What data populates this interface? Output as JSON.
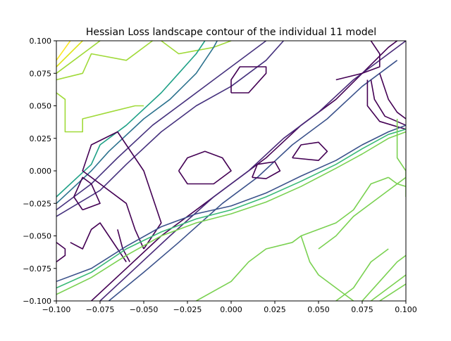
{
  "chart_data": {
    "type": "contour",
    "title": "Hessian Loss landscape contour of the individual 11 model",
    "xlabel": "",
    "ylabel": "",
    "xlim": [
      -0.1,
      0.1
    ],
    "ylim": [
      -0.1,
      0.1
    ],
    "grid": false,
    "legend": "none",
    "colormap": "viridis",
    "xticks": [
      -0.1,
      -0.075,
      -0.05,
      -0.025,
      0.0,
      0.025,
      0.05,
      0.075,
      0.1
    ],
    "yticks": [
      -0.1,
      -0.075,
      -0.05,
      -0.025,
      0.0,
      0.025,
      0.05,
      0.075,
      0.1
    ],
    "xtick_labels": [
      "−0.100",
      "−0.075",
      "−0.050",
      "−0.025",
      "0.000",
      "0.025",
      "0.050",
      "0.075",
      "0.100"
    ],
    "ytick_labels": [
      "−0.100",
      "−0.075",
      "−0.050",
      "−0.025",
      "0.000",
      "0.025",
      "0.050",
      "0.075",
      "0.100"
    ],
    "contour_lines": [
      {
        "color": "#fde725",
        "points": [
          [
            -0.1,
            0.085
          ],
          [
            -0.092,
            0.1
          ]
        ]
      },
      {
        "color": "#dde318",
        "points": [
          [
            -0.1,
            0.08
          ],
          [
            -0.085,
            0.1
          ]
        ]
      },
      {
        "color": "#a0da39",
        "points": [
          [
            -0.1,
            0.075
          ],
          [
            -0.08,
            0.095
          ],
          [
            -0.075,
            0.1
          ]
        ]
      },
      {
        "color": "#a0da39",
        "points": [
          [
            -0.1,
            0.07
          ],
          [
            -0.085,
            0.075
          ],
          [
            -0.08,
            0.09
          ],
          [
            -0.06,
            0.085
          ],
          [
            -0.045,
            0.1
          ]
        ]
      },
      {
        "color": "#a0da39",
        "points": [
          [
            -0.04,
            0.1
          ],
          [
            -0.03,
            0.09
          ],
          [
            -0.01,
            0.095
          ],
          [
            0.0,
            0.1
          ]
        ]
      },
      {
        "color": "#a0da39",
        "points": [
          [
            -0.1,
            0.06
          ],
          [
            -0.095,
            0.055
          ],
          [
            -0.095,
            0.03
          ],
          [
            -0.085,
            0.03
          ],
          [
            -0.085,
            0.04
          ],
          [
            -0.07,
            0.045
          ],
          [
            -0.055,
            0.05
          ],
          [
            -0.05,
            0.05
          ]
        ]
      },
      {
        "color": "#1fa187",
        "points": [
          [
            -0.1,
            -0.02
          ],
          [
            -0.08,
            0.005
          ],
          [
            -0.075,
            0.02
          ],
          [
            -0.06,
            0.035
          ],
          [
            -0.04,
            0.06
          ],
          [
            -0.03,
            0.075
          ],
          [
            -0.02,
            0.09
          ],
          [
            -0.015,
            0.1
          ]
        ]
      },
      {
        "color": "#2c728e",
        "points": [
          [
            -0.1,
            -0.025
          ],
          [
            -0.08,
            0.0
          ],
          [
            -0.07,
            0.015
          ],
          [
            -0.05,
            0.04
          ],
          [
            -0.035,
            0.055
          ],
          [
            -0.02,
            0.075
          ],
          [
            -0.01,
            0.095
          ],
          [
            -0.008,
            0.1
          ]
        ]
      },
      {
        "color": "#46327e",
        "points": [
          [
            -0.1,
            -0.03
          ],
          [
            -0.08,
            -0.01
          ],
          [
            -0.065,
            0.01
          ],
          [
            -0.045,
            0.035
          ],
          [
            -0.025,
            0.055
          ],
          [
            -0.01,
            0.07
          ],
          [
            0.01,
            0.09
          ],
          [
            0.02,
            0.1
          ]
        ]
      },
      {
        "color": "#46327e",
        "points": [
          [
            -0.1,
            -0.035
          ],
          [
            -0.075,
            -0.015
          ],
          [
            -0.06,
            0.005
          ],
          [
            -0.04,
            0.03
          ],
          [
            -0.02,
            0.05
          ],
          [
            0.0,
            0.065
          ],
          [
            0.02,
            0.085
          ],
          [
            0.03,
            0.1
          ]
        ]
      },
      {
        "color": "#440154",
        "points": [
          [
            -0.08,
            -0.1
          ],
          [
            -0.06,
            -0.075
          ],
          [
            -0.04,
            -0.05
          ],
          [
            -0.015,
            -0.025
          ],
          [
            0.0,
            -0.01
          ],
          [
            0.02,
            0.01
          ],
          [
            0.04,
            0.035
          ],
          [
            0.06,
            0.055
          ],
          [
            0.075,
            0.075
          ],
          [
            0.09,
            0.095
          ],
          [
            0.095,
            0.1
          ]
        ]
      },
      {
        "color": "#482878",
        "points": [
          [
            -0.075,
            -0.1
          ],
          [
            -0.055,
            -0.075
          ],
          [
            -0.035,
            -0.05
          ],
          [
            -0.01,
            -0.02
          ],
          [
            0.01,
            0.0
          ],
          [
            0.03,
            0.025
          ],
          [
            0.05,
            0.045
          ],
          [
            0.07,
            0.07
          ],
          [
            0.09,
            0.09
          ],
          [
            0.1,
            0.1
          ]
        ]
      },
      {
        "color": "#3b528b",
        "points": [
          [
            -0.07,
            -0.1
          ],
          [
            -0.05,
            -0.078
          ],
          [
            -0.03,
            -0.055
          ],
          [
            -0.005,
            -0.025
          ],
          [
            0.015,
            -0.005
          ],
          [
            0.035,
            0.02
          ],
          [
            0.055,
            0.04
          ],
          [
            0.075,
            0.065
          ],
          [
            0.095,
            0.085
          ]
        ]
      },
      {
        "color": "#440154",
        "points": [
          [
            -0.05,
            -0.06
          ],
          [
            -0.055,
            -0.045
          ],
          [
            -0.06,
            -0.025
          ],
          [
            -0.075,
            -0.01
          ],
          [
            -0.085,
            0.0
          ],
          [
            -0.08,
            0.02
          ],
          [
            -0.065,
            0.03
          ],
          [
            -0.06,
            0.02
          ],
          [
            -0.055,
            0.01
          ],
          [
            -0.05,
            0.0
          ],
          [
            -0.045,
            -0.02
          ],
          [
            -0.04,
            -0.04
          ],
          [
            -0.05,
            -0.06
          ]
        ]
      },
      {
        "color": "#440154",
        "points": [
          [
            -0.085,
            -0.03
          ],
          [
            -0.09,
            -0.02
          ],
          [
            -0.085,
            -0.005
          ],
          [
            -0.08,
            -0.01
          ],
          [
            -0.075,
            -0.025
          ],
          [
            -0.085,
            -0.03
          ]
        ]
      },
      {
        "color": "#440154",
        "points": [
          [
            0.035,
            0.01
          ],
          [
            0.04,
            0.02
          ],
          [
            0.05,
            0.022
          ],
          [
            0.055,
            0.015
          ],
          [
            0.05,
            0.008
          ],
          [
            0.035,
            0.01
          ]
        ]
      },
      {
        "color": "#440154",
        "points": [
          [
            0.012,
            -0.005
          ],
          [
            0.015,
            0.005
          ],
          [
            0.025,
            0.007
          ],
          [
            0.028,
            0.0
          ],
          [
            0.02,
            -0.006
          ],
          [
            0.012,
            -0.005
          ]
        ]
      },
      {
        "color": "#440154",
        "points": [
          [
            -0.03,
            0.0
          ],
          [
            -0.025,
            0.01
          ],
          [
            -0.015,
            0.015
          ],
          [
            -0.005,
            0.01
          ],
          [
            0.0,
            0.0
          ],
          [
            -0.01,
            -0.01
          ],
          [
            -0.025,
            -0.01
          ],
          [
            -0.03,
            0.0
          ]
        ]
      },
      {
        "color": "#440154",
        "points": [
          [
            0.0,
            0.06
          ],
          [
            0.01,
            0.06
          ],
          [
            0.02,
            0.075
          ],
          [
            0.02,
            0.08
          ],
          [
            0.005,
            0.08
          ],
          [
            0.0,
            0.07
          ],
          [
            0.0,
            0.06
          ]
        ]
      },
      {
        "color": "#440154",
        "points": [
          [
            0.06,
            0.07
          ],
          [
            0.075,
            0.075
          ],
          [
            0.085,
            0.08
          ],
          [
            0.085,
            0.09
          ],
          [
            0.08,
            0.1
          ]
        ]
      },
      {
        "color": "#440154",
        "points": [
          [
            0.085,
            0.075
          ],
          [
            0.09,
            0.055
          ],
          [
            0.095,
            0.045
          ],
          [
            0.1,
            0.04
          ]
        ]
      },
      {
        "color": "#440154",
        "points": [
          [
            0.08,
            0.07
          ],
          [
            0.082,
            0.055
          ],
          [
            0.088,
            0.042
          ],
          [
            0.1,
            0.035
          ]
        ]
      },
      {
        "color": "#440154",
        "points": [
          [
            0.078,
            0.07
          ],
          [
            0.078,
            0.05
          ],
          [
            0.085,
            0.038
          ],
          [
            0.1,
            0.032
          ]
        ]
      },
      {
        "color": "#440154",
        "points": [
          [
            -0.092,
            -0.055
          ],
          [
            -0.085,
            -0.06
          ],
          [
            -0.08,
            -0.045
          ],
          [
            -0.075,
            -0.04
          ],
          [
            -0.07,
            -0.05
          ],
          [
            -0.065,
            -0.06
          ],
          [
            -0.06,
            -0.07
          ]
        ]
      },
      {
        "color": "#440154",
        "points": [
          [
            -0.065,
            -0.045
          ],
          [
            -0.062,
            -0.06
          ],
          [
            -0.058,
            -0.07
          ]
        ]
      },
      {
        "color": "#440154",
        "points": [
          [
            -0.1,
            -0.055
          ],
          [
            -0.095,
            -0.06
          ],
          [
            -0.095,
            -0.065
          ],
          [
            -0.1,
            -0.07
          ]
        ]
      },
      {
        "color": "#3aba76",
        "points": [
          [
            -0.1,
            -0.09
          ],
          [
            -0.08,
            -0.078
          ],
          [
            -0.06,
            -0.06
          ],
          [
            -0.04,
            -0.047
          ],
          [
            -0.02,
            -0.037
          ],
          [
            0.0,
            -0.03
          ],
          [
            0.02,
            -0.02
          ],
          [
            0.04,
            -0.008
          ],
          [
            0.06,
            0.005
          ],
          [
            0.075,
            0.017
          ],
          [
            0.09,
            0.028
          ],
          [
            0.1,
            0.032
          ]
        ]
      },
      {
        "color": "#3b528b",
        "points": [
          [
            -0.1,
            -0.085
          ],
          [
            -0.08,
            -0.075
          ],
          [
            -0.06,
            -0.058
          ],
          [
            -0.04,
            -0.043
          ],
          [
            -0.02,
            -0.033
          ],
          [
            0.0,
            -0.027
          ],
          [
            0.02,
            -0.017
          ],
          [
            0.04,
            -0.004
          ],
          [
            0.06,
            0.008
          ],
          [
            0.075,
            0.02
          ],
          [
            0.09,
            0.03
          ],
          [
            0.1,
            0.035
          ]
        ]
      },
      {
        "color": "#7ad151",
        "points": [
          [
            -0.1,
            -0.095
          ],
          [
            -0.08,
            -0.082
          ],
          [
            -0.06,
            -0.065
          ],
          [
            -0.04,
            -0.05
          ],
          [
            -0.02,
            -0.04
          ],
          [
            0.0,
            -0.033
          ],
          [
            0.02,
            -0.024
          ],
          [
            0.04,
            -0.012
          ],
          [
            0.06,
            0.002
          ],
          [
            0.075,
            0.013
          ],
          [
            0.09,
            0.025
          ],
          [
            0.1,
            0.03
          ]
        ]
      },
      {
        "color": "#7ad151",
        "points": [
          [
            -0.02,
            -0.1
          ],
          [
            0.0,
            -0.085
          ],
          [
            0.01,
            -0.07
          ],
          [
            0.02,
            -0.06
          ],
          [
            0.035,
            -0.055
          ],
          [
            0.04,
            -0.05
          ],
          [
            0.045,
            -0.07
          ],
          [
            0.05,
            -0.08
          ],
          [
            0.06,
            -0.09
          ],
          [
            0.07,
            -0.1
          ]
        ]
      },
      {
        "color": "#7ad151",
        "points": [
          [
            0.04,
            -0.05
          ],
          [
            0.05,
            -0.045
          ],
          [
            0.06,
            -0.04
          ],
          [
            0.07,
            -0.03
          ],
          [
            0.08,
            -0.01
          ],
          [
            0.09,
            -0.005
          ]
        ]
      },
      {
        "color": "#7ad151",
        "points": [
          [
            0.05,
            -0.06
          ],
          [
            0.06,
            -0.05
          ],
          [
            0.07,
            -0.035
          ],
          [
            0.085,
            -0.02
          ],
          [
            0.095,
            -0.01
          ],
          [
            0.1,
            -0.005
          ]
        ]
      },
      {
        "color": "#7ad151",
        "points": [
          [
            0.075,
            -0.1
          ],
          [
            0.085,
            -0.085
          ],
          [
            0.095,
            -0.07
          ],
          [
            0.1,
            -0.065
          ]
        ]
      },
      {
        "color": "#7ad151",
        "points": [
          [
            0.08,
            -0.1
          ],
          [
            0.09,
            -0.09
          ],
          [
            0.1,
            -0.08
          ]
        ]
      },
      {
        "color": "#7ad151",
        "points": [
          [
            0.085,
            -0.1
          ],
          [
            0.1,
            -0.087
          ]
        ]
      },
      {
        "color": "#7ad151",
        "points": [
          [
            0.06,
            -0.1
          ],
          [
            0.07,
            -0.09
          ],
          [
            0.08,
            -0.07
          ],
          [
            0.09,
            -0.06
          ]
        ]
      },
      {
        "color": "#7ad151",
        "points": [
          [
            0.095,
            0.04
          ],
          [
            0.095,
            0.01
          ],
          [
            0.1,
            0.0
          ],
          [
            0.1,
            -0.02
          ]
        ]
      },
      {
        "color": "#7ad151",
        "points": [
          [
            0.09,
            -0.005
          ],
          [
            0.095,
            -0.01
          ],
          [
            0.1,
            -0.012
          ]
        ]
      }
    ]
  }
}
